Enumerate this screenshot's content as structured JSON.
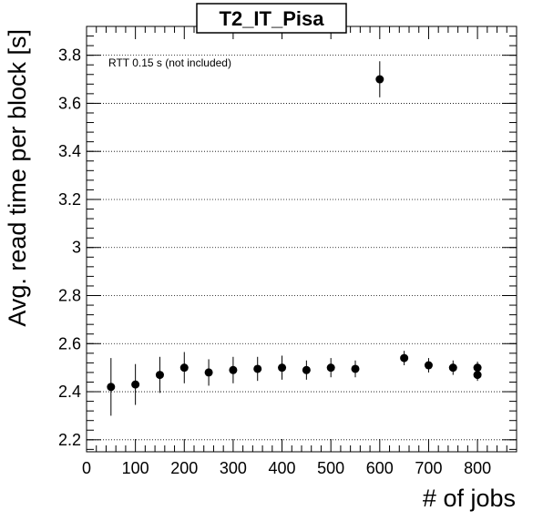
{
  "chart_data": {
    "type": "scatter",
    "title": "T2_IT_Pisa",
    "xlabel": "# of jobs",
    "ylabel": "Avg. read time per block [s]",
    "annotation": "RTT 0.15 s (not included)",
    "xlim": [
      0,
      880
    ],
    "ylim": [
      2.15,
      3.92
    ],
    "xticks": [
      0,
      100,
      200,
      300,
      400,
      500,
      600,
      700,
      800
    ],
    "yticks": [
      2.2,
      2.4,
      2.6,
      2.8,
      3,
      3.2,
      3.4,
      3.6,
      3.8
    ],
    "ytick_labels": [
      "2.2",
      "2.4",
      "2.6",
      "2.8",
      "3",
      "3.2",
      "3.4",
      "3.6",
      "3.8"
    ],
    "grid": "horizontal-dotted",
    "series": [
      {
        "x": [
          50,
          100,
          150,
          200,
          250,
          300,
          350,
          400,
          450,
          500,
          550,
          600,
          650,
          700,
          750,
          800,
          800
        ],
        "y": [
          2.42,
          2.43,
          2.47,
          2.5,
          2.48,
          2.49,
          2.495,
          2.5,
          2.49,
          2.5,
          2.495,
          3.7,
          2.54,
          2.51,
          2.5,
          2.5,
          2.47
        ],
        "yerr": [
          0.12,
          0.085,
          0.075,
          0.065,
          0.055,
          0.055,
          0.05,
          0.05,
          0.04,
          0.04,
          0.035,
          0.075,
          0.03,
          0.03,
          0.03,
          0.025,
          0.025
        ]
      }
    ],
    "marker_color": "#000000"
  }
}
